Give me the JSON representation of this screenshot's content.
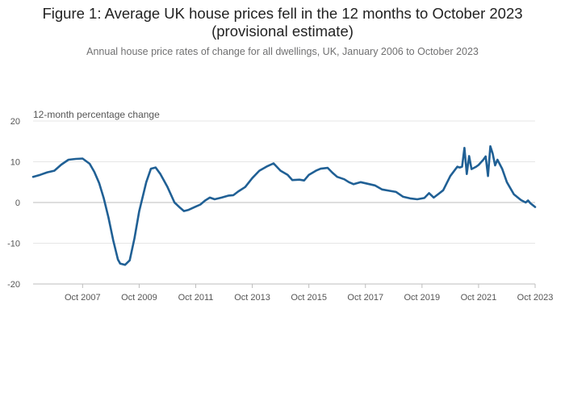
{
  "figure": {
    "title_line1": "Figure 1: Average UK house prices fell in the 12 months to October 2023",
    "title_line2": "(provisional estimate)",
    "subtitle": "Annual house price rates of change for all dwellings, UK, January 2006 to October 2023"
  },
  "chart_data": {
    "type": "line",
    "title": "Figure 1: Average UK house prices fell in the 12 months to October 2023 (provisional estimate)",
    "subtitle": "Annual house price rates of change for all dwellings, UK, January 2006 to October 2023",
    "ylabel": "12-month percentage change",
    "xlabel": "",
    "ylim": [
      -20,
      20
    ],
    "y_ticks": [
      20,
      10,
      0,
      -10,
      -20
    ],
    "x_ticks": [
      "Oct 2007",
      "Oct 2009",
      "Oct 2011",
      "Oct 2013",
      "Oct 2015",
      "Oct 2017",
      "Oct 2019",
      "Oct 2021",
      "Oct 2023"
    ],
    "x_range": [
      "2006-01",
      "2023-10"
    ],
    "grid": "horizontal",
    "line_color": "#206095",
    "series": [
      {
        "name": "",
        "points": [
          [
            "2006-01",
            6.3
          ],
          [
            "2006-04",
            6.8
          ],
          [
            "2006-07",
            7.4
          ],
          [
            "2006-10",
            7.8
          ],
          [
            "2007-01",
            9.3
          ],
          [
            "2007-04",
            10.5
          ],
          [
            "2007-07",
            10.7
          ],
          [
            "2007-10",
            10.8
          ],
          [
            "2008-01",
            9.5
          ],
          [
            "2008-03",
            7.5
          ],
          [
            "2008-05",
            4.8
          ],
          [
            "2008-07",
            1.0
          ],
          [
            "2008-09",
            -3.7
          ],
          [
            "2008-11",
            -9.3
          ],
          [
            "2009-01",
            -14.0
          ],
          [
            "2009-02",
            -15.0
          ],
          [
            "2009-04",
            -15.3
          ],
          [
            "2009-06",
            -14.2
          ],
          [
            "2009-08",
            -8.8
          ],
          [
            "2009-10",
            -2.2
          ],
          [
            "2010-01",
            5.0
          ],
          [
            "2010-03",
            8.3
          ],
          [
            "2010-05",
            8.6
          ],
          [
            "2010-07",
            7.0
          ],
          [
            "2010-10",
            3.8
          ],
          [
            "2011-01",
            0.0
          ],
          [
            "2011-03",
            -1.1
          ],
          [
            "2011-05",
            -2.1
          ],
          [
            "2011-07",
            -1.8
          ],
          [
            "2011-10",
            -1.0
          ],
          [
            "2011-12",
            -0.5
          ],
          [
            "2012-02",
            0.5
          ],
          [
            "2012-04",
            1.2
          ],
          [
            "2012-06",
            0.8
          ],
          [
            "2012-09",
            1.2
          ],
          [
            "2012-12",
            1.7
          ],
          [
            "2013-02",
            1.8
          ],
          [
            "2013-04",
            2.7
          ],
          [
            "2013-07",
            3.8
          ],
          [
            "2013-10",
            6.0
          ],
          [
            "2014-01",
            7.8
          ],
          [
            "2014-04",
            8.8
          ],
          [
            "2014-07",
            9.6
          ],
          [
            "2014-10",
            7.8
          ],
          [
            "2015-01",
            6.8
          ],
          [
            "2015-03",
            5.5
          ],
          [
            "2015-06",
            5.6
          ],
          [
            "2015-08",
            5.4
          ],
          [
            "2015-10",
            6.8
          ],
          [
            "2016-01",
            7.8
          ],
          [
            "2016-03",
            8.3
          ],
          [
            "2016-06",
            8.5
          ],
          [
            "2016-08",
            7.3
          ],
          [
            "2016-10",
            6.3
          ],
          [
            "2017-01",
            5.7
          ],
          [
            "2017-03",
            5.0
          ],
          [
            "2017-05",
            4.5
          ],
          [
            "2017-08",
            5.0
          ],
          [
            "2017-11",
            4.6
          ],
          [
            "2018-02",
            4.2
          ],
          [
            "2018-05",
            3.2
          ],
          [
            "2018-08",
            2.9
          ],
          [
            "2018-11",
            2.6
          ],
          [
            "2019-02",
            1.4
          ],
          [
            "2019-05",
            1.0
          ],
          [
            "2019-08",
            0.8
          ],
          [
            "2019-11",
            1.1
          ],
          [
            "2020-01",
            2.3
          ],
          [
            "2020-03",
            1.2
          ],
          [
            "2020-05",
            2.1
          ],
          [
            "2020-07",
            3.0
          ],
          [
            "2020-10",
            6.5
          ],
          [
            "2021-01",
            8.8
          ],
          [
            "2021-02",
            8.6
          ],
          [
            "2021-03",
            8.8
          ],
          [
            "2021-04",
            13.4
          ],
          [
            "2021-05",
            7.0
          ],
          [
            "2021-06",
            11.4
          ],
          [
            "2021-07",
            8.2
          ],
          [
            "2021-09",
            8.8
          ],
          [
            "2021-10",
            9.2
          ],
          [
            "2021-12",
            10.5
          ],
          [
            "2022-01",
            11.3
          ],
          [
            "2022-02",
            6.5
          ],
          [
            "2022-03",
            13.8
          ],
          [
            "2022-04",
            12.0
          ],
          [
            "2022-05",
            9.1
          ],
          [
            "2022-06",
            10.5
          ],
          [
            "2022-08",
            8.3
          ],
          [
            "2022-10",
            5.0
          ],
          [
            "2023-01",
            2.0
          ],
          [
            "2023-04",
            0.6
          ],
          [
            "2023-06",
            0.0
          ],
          [
            "2023-07",
            0.5
          ],
          [
            "2023-08",
            -0.2
          ],
          [
            "2023-10",
            -1.1
          ]
        ]
      }
    ]
  }
}
